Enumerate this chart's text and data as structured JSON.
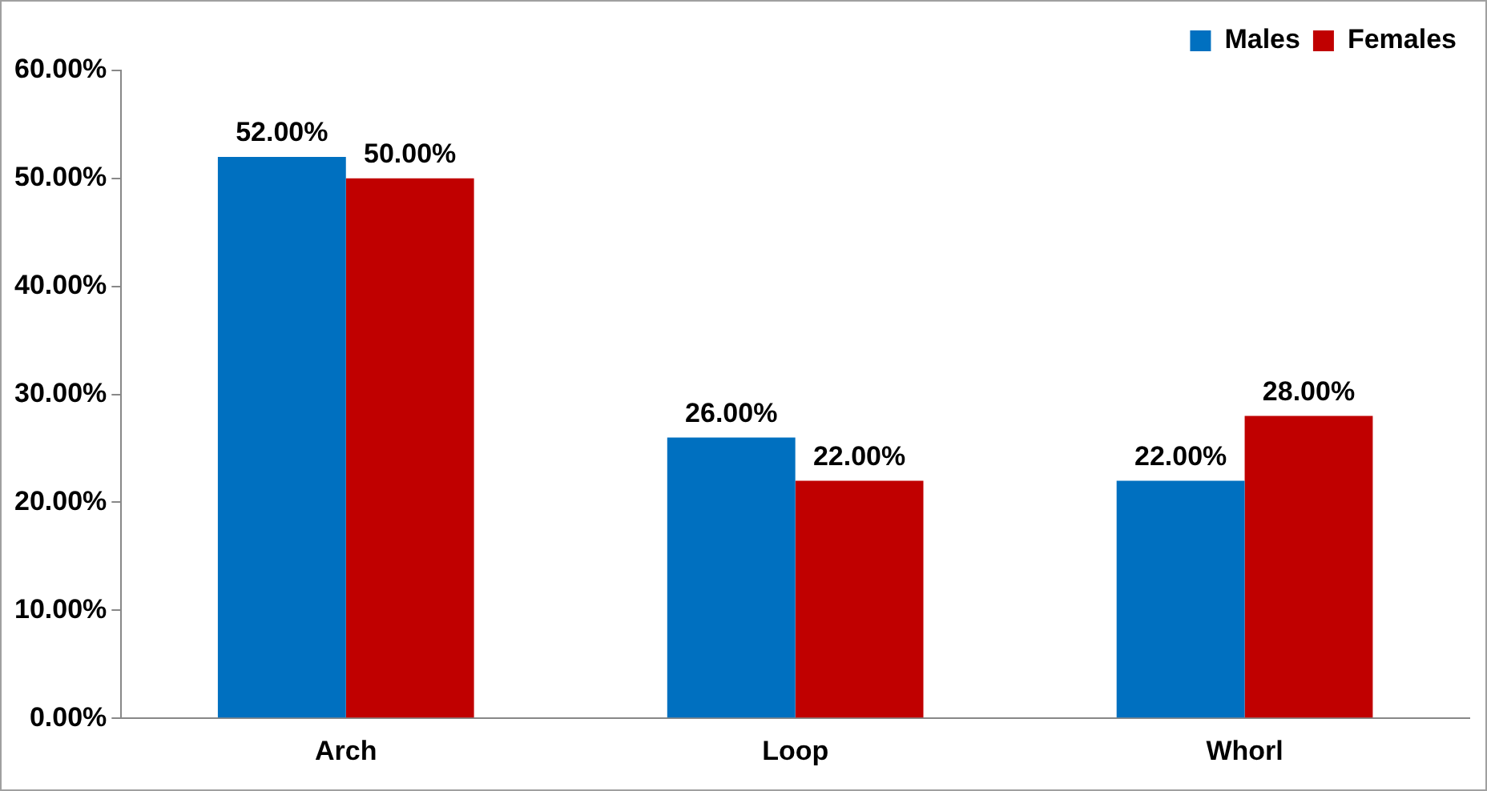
{
  "chart_data": {
    "type": "bar",
    "categories": [
      "Arch",
      "Loop",
      "Whorl"
    ],
    "series": [
      {
        "name": "Males",
        "color": "#0070c0",
        "values": [
          52,
          26,
          22
        ],
        "value_labels": [
          "52.00%",
          "26.00%",
          "22.00%"
        ]
      },
      {
        "name": "Females",
        "color": "#c00000",
        "values": [
          50,
          22,
          28
        ],
        "value_labels": [
          "50.00%",
          "22.00%",
          "28.00%"
        ]
      }
    ],
    "ylim": [
      0,
      60
    ],
    "yticks": [
      {
        "value": 0,
        "label": "0.00%"
      },
      {
        "value": 10,
        "label": "10.00%"
      },
      {
        "value": 20,
        "label": "20.00%"
      },
      {
        "value": 30,
        "label": "30.00%"
      },
      {
        "value": 40,
        "label": "40.00%"
      },
      {
        "value": 50,
        "label": "50.00%"
      },
      {
        "value": 60,
        "label": "60.00%"
      }
    ],
    "grid": false,
    "legend": "top right"
  }
}
